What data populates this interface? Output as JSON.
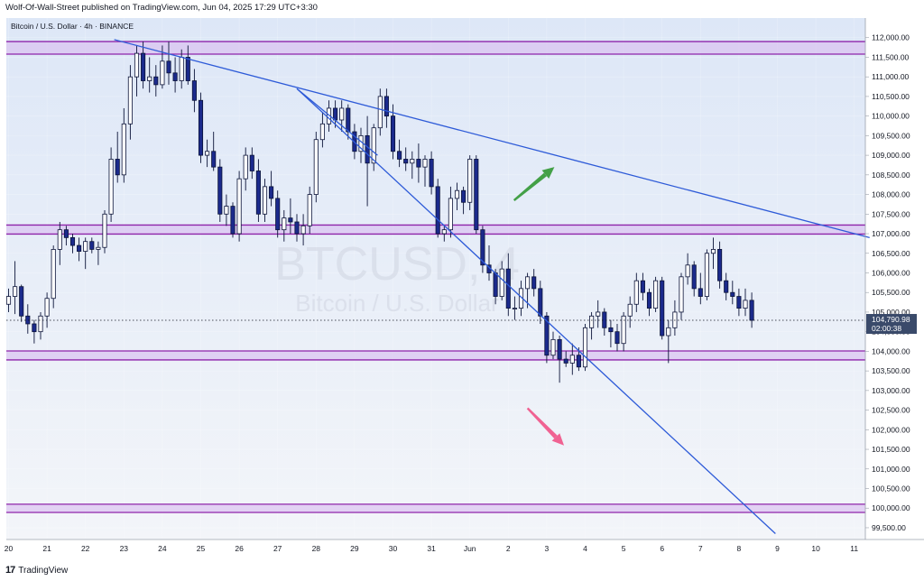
{
  "header": {
    "published": "Wolf-Of-Wall-Street published on TradingView.com, Jun 04, 2025 17:29 UTC+3:30"
  },
  "footer": {
    "logo": "17",
    "brand": "TradingView"
  },
  "chart_data": {
    "type": "candlestick",
    "title": "Bitcoin / U.S. Dollar · 4h · BINANCE",
    "watermark": "BTCUSD, 4",
    "watermark_sub": "Bitcoin / U.S. Dollar",
    "ylim": [
      99200,
      112500
    ],
    "y_ticks": [
      99500,
      100000,
      100500,
      101000,
      101500,
      102000,
      102500,
      103000,
      103500,
      104000,
      104500,
      105000,
      105500,
      106000,
      106500,
      107000,
      107500,
      108000,
      108500,
      109000,
      109500,
      110000,
      110500,
      111000,
      111500,
      112000
    ],
    "x_ticks": [
      {
        "label": "20",
        "day": 0
      },
      {
        "label": "21",
        "day": 1
      },
      {
        "label": "22",
        "day": 2
      },
      {
        "label": "23",
        "day": 3
      },
      {
        "label": "24",
        "day": 4
      },
      {
        "label": "25",
        "day": 5
      },
      {
        "label": "26",
        "day": 6
      },
      {
        "label": "27",
        "day": 7
      },
      {
        "label": "28",
        "day": 8
      },
      {
        "label": "29",
        "day": 9
      },
      {
        "label": "30",
        "day": 10
      },
      {
        "label": "31",
        "day": 11
      },
      {
        "label": "Jun",
        "day": 12
      },
      {
        "label": "2",
        "day": 13
      },
      {
        "label": "3",
        "day": 14
      },
      {
        "label": "4",
        "day": 15
      },
      {
        "label": "5",
        "day": 16
      },
      {
        "label": "6",
        "day": 17
      },
      {
        "label": "7",
        "day": 18
      },
      {
        "label": "8",
        "day": 19
      },
      {
        "label": "9",
        "day": 20
      },
      {
        "label": "10",
        "day": 21
      },
      {
        "label": "11",
        "day": 22
      }
    ],
    "last_price": {
      "value": 104790.98,
      "label": "104,790.98",
      "countdown": "02:00:38"
    },
    "zones": [
      {
        "low": 111580,
        "high": 111900
      },
      {
        "low": 106990,
        "high": 107220
      },
      {
        "low": 103780,
        "high": 104010
      },
      {
        "low": 99890,
        "high": 100100
      }
    ],
    "trendlines": [
      {
        "from": {
          "day": 2.75,
          "price": 111950
        },
        "to": {
          "day": 22.4,
          "price": 106900
        }
      },
      {
        "from": {
          "day": 7.5,
          "price": 110700
        },
        "to": {
          "day": 19.95,
          "price": 99350
        }
      },
      {
        "from": {
          "day": 7.5,
          "price": 110700
        },
        "to": {
          "day": 9.6,
          "price": 109000
        }
      }
    ],
    "arrows": [
      {
        "direction": "up",
        "color": "#43a047",
        "from": {
          "day": 13.15,
          "price": 107850
        },
        "to": {
          "day": 14.2,
          "price": 108700
        }
      },
      {
        "direction": "down",
        "color": "#f06292",
        "from": {
          "day": 13.5,
          "price": 102550
        },
        "to": {
          "day": 14.45,
          "price": 101600
        }
      }
    ],
    "candles": [
      [
        105200,
        105600,
        105000,
        105400
      ],
      [
        105400,
        106300,
        104950,
        105650
      ],
      [
        105650,
        105700,
        104750,
        104900
      ],
      [
        104900,
        105200,
        104450,
        104700
      ],
      [
        104700,
        104800,
        104200,
        104500
      ],
      [
        104500,
        105000,
        104300,
        104900
      ],
      [
        104900,
        105500,
        104600,
        105350
      ],
      [
        105350,
        106700,
        105100,
        106600
      ],
      [
        106600,
        107300,
        106200,
        107100
      ],
      [
        107100,
        107200,
        106700,
        106900
      ],
      [
        106900,
        107000,
        106500,
        106700
      ],
      [
        106700,
        106900,
        106300,
        106550
      ],
      [
        106550,
        106900,
        106100,
        106800
      ],
      [
        106800,
        106900,
        106500,
        106600
      ],
      [
        106600,
        106800,
        106200,
        106650
      ],
      [
        106650,
        107600,
        106500,
        107500
      ],
      [
        107500,
        109200,
        107300,
        108900
      ],
      [
        108900,
        109600,
        108300,
        108500
      ],
      [
        108500,
        110200,
        108300,
        109800
      ],
      [
        109800,
        111300,
        109400,
        111000
      ],
      [
        111000,
        111800,
        110500,
        111600
      ],
      [
        111600,
        111900,
        110700,
        110900
      ],
      [
        110900,
        111500,
        110600,
        111000
      ],
      [
        111000,
        111300,
        110500,
        110800
      ],
      [
        110800,
        111800,
        110700,
        111400
      ],
      [
        111400,
        111900,
        110800,
        111100
      ],
      [
        111100,
        111500,
        110600,
        110900
      ],
      [
        110900,
        111700,
        110700,
        111500
      ],
      [
        111500,
        111800,
        110800,
        110900
      ],
      [
        110900,
        111200,
        110100,
        110400
      ],
      [
        110400,
        110600,
        108800,
        109000
      ],
      [
        109000,
        109400,
        108700,
        109100
      ],
      [
        109100,
        109600,
        108600,
        108700
      ],
      [
        108700,
        108900,
        107300,
        107500
      ],
      [
        107500,
        108000,
        107200,
        107700
      ],
      [
        107700,
        107800,
        106900,
        107000
      ],
      [
        107000,
        108600,
        106800,
        108400
      ],
      [
        108400,
        109200,
        108100,
        109000
      ],
      [
        109000,
        109200,
        108400,
        108600
      ],
      [
        108600,
        108900,
        107300,
        107500
      ],
      [
        107500,
        108400,
        107300,
        108200
      ],
      [
        108200,
        108600,
        107700,
        107900
      ],
      [
        107900,
        108100,
        106900,
        107100
      ],
      [
        107100,
        107600,
        106800,
        107400
      ],
      [
        107400,
        107900,
        107000,
        107300
      ],
      [
        107300,
        107500,
        106800,
        107000
      ],
      [
        107000,
        107500,
        106700,
        107200
      ],
      [
        107200,
        108200,
        107000,
        108000
      ],
      [
        108000,
        109600,
        107800,
        109400
      ],
      [
        109400,
        110100,
        109200,
        109800
      ],
      [
        109800,
        110400,
        109600,
        110200
      ],
      [
        110200,
        110400,
        109700,
        109900
      ],
      [
        109900,
        110400,
        109600,
        110200
      ],
      [
        110200,
        110300,
        109400,
        109600
      ],
      [
        109600,
        109800,
        108900,
        109100
      ],
      [
        109100,
        109700,
        108800,
        109500
      ],
      [
        109500,
        110000,
        107700,
        108800
      ],
      [
        108800,
        109800,
        108600,
        109700
      ],
      [
        109700,
        110700,
        109500,
        110500
      ],
      [
        110500,
        110700,
        109700,
        110000
      ],
      [
        110000,
        110300,
        108900,
        109100
      ],
      [
        109100,
        109400,
        108700,
        108900
      ],
      [
        108900,
        109200,
        108600,
        108800
      ],
      [
        108800,
        109100,
        108400,
        108900
      ],
      [
        108900,
        109300,
        108300,
        108700
      ],
      [
        108700,
        109000,
        108200,
        108900
      ],
      [
        108900,
        109100,
        108000,
        108200
      ],
      [
        108200,
        108400,
        106900,
        107000
      ],
      [
        107000,
        107200,
        106800,
        107100
      ],
      [
        107100,
        108200,
        106900,
        107900
      ],
      [
        107900,
        108300,
        107600,
        108100
      ],
      [
        108100,
        108200,
        107500,
        107800
      ],
      [
        107800,
        109000,
        107600,
        108900
      ],
      [
        108900,
        109000,
        107000,
        107100
      ],
      [
        107100,
        107200,
        106000,
        106200
      ],
      [
        106200,
        106700,
        105800,
        106000
      ],
      [
        106000,
        106100,
        105200,
        105400
      ],
      [
        105400,
        106300,
        105300,
        106100
      ],
      [
        106100,
        106500,
        104900,
        105100
      ],
      [
        105100,
        105400,
        104800,
        105100
      ],
      [
        105100,
        105800,
        104900,
        105600
      ],
      [
        105600,
        106000,
        105100,
        105900
      ],
      [
        105900,
        106100,
        105400,
        105600
      ],
      [
        105600,
        105800,
        104700,
        104900
      ],
      [
        104900,
        105000,
        103700,
        103900
      ],
      [
        103900,
        104500,
        103800,
        104300
      ],
      [
        104300,
        104400,
        103200,
        103800
      ],
      [
        103800,
        104000,
        103600,
        103700
      ],
      [
        103700,
        104200,
        103400,
        103900
      ],
      [
        103900,
        104100,
        103500,
        103600
      ],
      [
        103600,
        104700,
        103500,
        104600
      ],
      [
        104600,
        105000,
        104300,
        104900
      ],
      [
        104900,
        105300,
        104600,
        105000
      ],
      [
        105000,
        105100,
        104400,
        104600
      ],
      [
        104600,
        104800,
        104100,
        104500
      ],
      [
        104500,
        104700,
        104000,
        104200
      ],
      [
        104200,
        105000,
        104000,
        104900
      ],
      [
        104900,
        105400,
        104600,
        105200
      ],
      [
        105200,
        106000,
        105000,
        105800
      ],
      [
        105800,
        106000,
        105300,
        105500
      ],
      [
        105500,
        105600,
        104900,
        105100
      ],
      [
        105100,
        105900,
        105000,
        105800
      ],
      [
        105800,
        105900,
        104300,
        104400
      ],
      [
        104400,
        104800,
        103700,
        104600
      ],
      [
        104600,
        105300,
        104400,
        105000
      ],
      [
        105000,
        106000,
        104800,
        105900
      ],
      [
        105900,
        106500,
        105700,
        106200
      ],
      [
        106200,
        106300,
        105400,
        105600
      ],
      [
        105600,
        106000,
        105200,
        105400
      ],
      [
        105400,
        106600,
        105300,
        106500
      ],
      [
        106500,
        106900,
        106100,
        106600
      ],
      [
        106600,
        106800,
        105600,
        105800
      ],
      [
        105800,
        106000,
        105300,
        105500
      ],
      [
        105500,
        105800,
        105200,
        105400
      ],
      [
        105400,
        105600,
        104900,
        105100
      ],
      [
        105100,
        105600,
        104900,
        105300
      ],
      [
        105300,
        105500,
        104600,
        104790.98
      ]
    ]
  }
}
